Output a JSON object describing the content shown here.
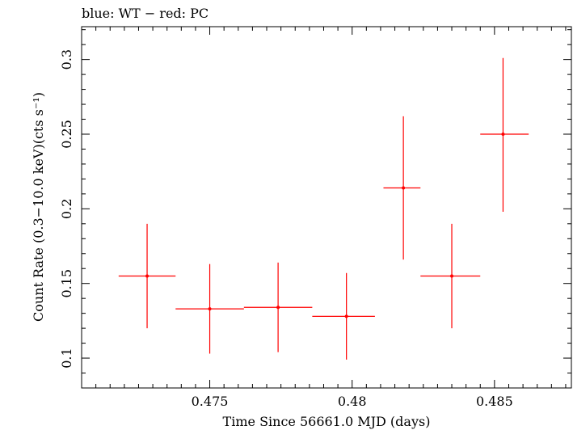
{
  "header": {
    "title": "blue: WT − red: PC"
  },
  "colors": {
    "pc_series": "#ff0000",
    "axis": "#000000",
    "background": "#ffffff"
  },
  "chart_data": {
    "type": "scatter",
    "title": "blue: WT − red: PC",
    "xlabel": "Time Since 56661.0 MJD (days)",
    "ylabel": "Count Rate (0.3−10.0 keV)(cts s⁻¹)",
    "xlim": [
      0.4705,
      0.4877
    ],
    "ylim": [
      0.08,
      0.322
    ],
    "x_ticks": [
      0.475,
      0.48,
      0.485
    ],
    "x_tick_labels": [
      "0.475",
      "0.48",
      "0.485"
    ],
    "y_ticks": [
      0.1,
      0.15,
      0.2,
      0.25,
      0.3
    ],
    "y_tick_labels": [
      "0.1",
      "0.15",
      "0.2",
      "0.25",
      "0.3"
    ],
    "grid": false,
    "series": [
      {
        "color": "#ff0000",
        "points": [
          {
            "x": 0.4728,
            "y": 0.155,
            "x_lo": 0.4718,
            "x_hi": 0.4738,
            "y_lo": 0.12,
            "y_hi": 0.19
          },
          {
            "x": 0.475,
            "y": 0.133,
            "x_lo": 0.4738,
            "x_hi": 0.4762,
            "y_lo": 0.103,
            "y_hi": 0.163
          },
          {
            "x": 0.4774,
            "y": 0.134,
            "x_lo": 0.4762,
            "x_hi": 0.4786,
            "y_lo": 0.104,
            "y_hi": 0.164
          },
          {
            "x": 0.4798,
            "y": 0.128,
            "x_lo": 0.4786,
            "x_hi": 0.4808,
            "y_lo": 0.099,
            "y_hi": 0.157
          },
          {
            "x": 0.4818,
            "y": 0.214,
            "x_lo": 0.4811,
            "x_hi": 0.4824,
            "y_lo": 0.166,
            "y_hi": 0.262
          },
          {
            "x": 0.4835,
            "y": 0.155,
            "x_lo": 0.4824,
            "x_hi": 0.4845,
            "y_lo": 0.12,
            "y_hi": 0.19
          },
          {
            "x": 0.4853,
            "y": 0.25,
            "x_lo": 0.4845,
            "x_hi": 0.4862,
            "y_lo": 0.198,
            "y_hi": 0.301
          }
        ]
      }
    ]
  }
}
